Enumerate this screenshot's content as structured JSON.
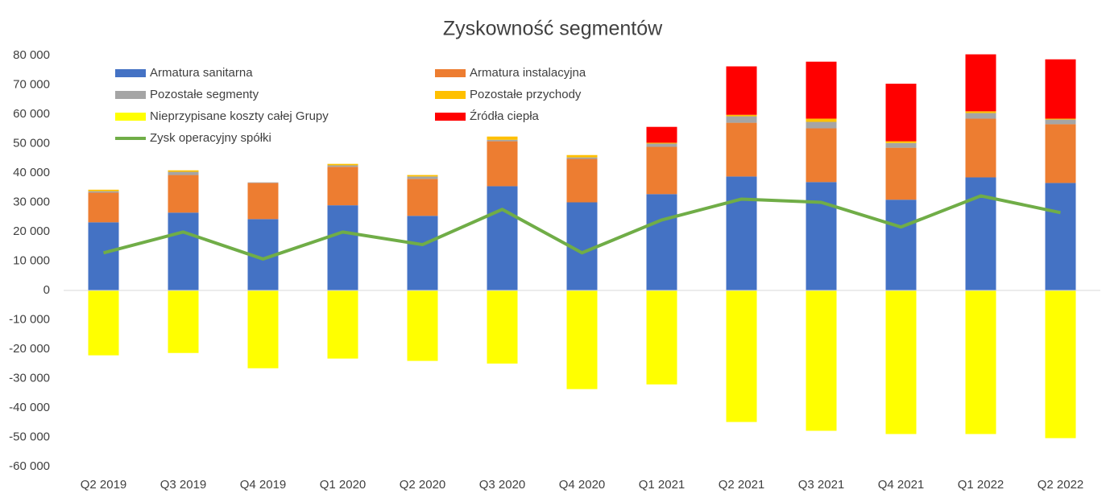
{
  "chart_data": {
    "type": "bar",
    "stacked": true,
    "title": "Zyskowność segmentów",
    "categories": [
      "Q2 2019",
      "Q3 2019",
      "Q4 2019",
      "Q1 2020",
      "Q2 2020",
      "Q3 2020",
      "Q4 2020",
      "Q1 2021",
      "Q2 2021",
      "Q3 2021",
      "Q4 2021",
      "Q1 2022",
      "Q2 2022"
    ],
    "series": [
      {
        "name": "Armatura sanitarna",
        "color": "#4472c4",
        "values": [
          23200,
          26500,
          24300,
          29000,
          25400,
          35500,
          30000,
          32800,
          38800,
          36900,
          30900,
          38500,
          36600
        ]
      },
      {
        "name": "Armatura instalacyjna",
        "color": "#ed7d31",
        "values": [
          10100,
          12800,
          12300,
          13100,
          12600,
          15300,
          14800,
          16100,
          18300,
          18300,
          17700,
          20000,
          20000
        ]
      },
      {
        "name": "Pozostałe segmenty",
        "color": "#a5a5a5",
        "values": [
          500,
          1100,
          200,
          500,
          800,
          500,
          500,
          1100,
          2200,
          2200,
          1600,
          1900,
          1600
        ]
      },
      {
        "name": "Pozostałe przychody",
        "color": "#ffc000",
        "values": [
          500,
          500,
          0,
          500,
          500,
          1100,
          800,
          300,
          500,
          1100,
          600,
          600,
          300
        ]
      },
      {
        "name": "Nieprzypisane koszty całej Grupy",
        "color": "#ffff00",
        "values": [
          -22100,
          -21300,
          -26500,
          -23200,
          -24000,
          -24900,
          -33600,
          -32000,
          -44800,
          -47800,
          -48900,
          -48900,
          -50300
        ]
      },
      {
        "name": "Źródła ciepła",
        "color": "#ff0000",
        "values": [
          0,
          0,
          0,
          0,
          0,
          0,
          0,
          5400,
          16500,
          19400,
          19600,
          19400,
          20200
        ]
      },
      {
        "name": "Zysk operacyjny spółki",
        "color": "#70ad47",
        "type": "line",
        "values": [
          12800,
          19900,
          10700,
          19900,
          15600,
          27600,
          12800,
          24000,
          31100,
          30000,
          21600,
          32200,
          26500
        ]
      }
    ],
    "ylim": [
      -60000,
      80000
    ],
    "yticks": [
      {
        "value": -60000,
        "label": "-60 000"
      },
      {
        "value": -50000,
        "label": "-50 000"
      },
      {
        "value": -40000,
        "label": "-40 000"
      },
      {
        "value": -30000,
        "label": "-30 000"
      },
      {
        "value": -20000,
        "label": "-20 000"
      },
      {
        "value": -10000,
        "label": "-10 000"
      },
      0,
      {
        "value": 10000,
        "label": "10 000"
      },
      {
        "value": 20000,
        "label": "20 000"
      },
      {
        "value": 30000,
        "label": "30 000"
      },
      {
        "value": 40000,
        "label": "40 000"
      },
      {
        "value": 50000,
        "label": "50 000"
      },
      {
        "value": 60000,
        "label": "60 000"
      },
      {
        "value": 70000,
        "label": "70 000"
      },
      {
        "value": 80000,
        "label": "80 000"
      }
    ],
    "grid": false,
    "legend": "top-left"
  }
}
